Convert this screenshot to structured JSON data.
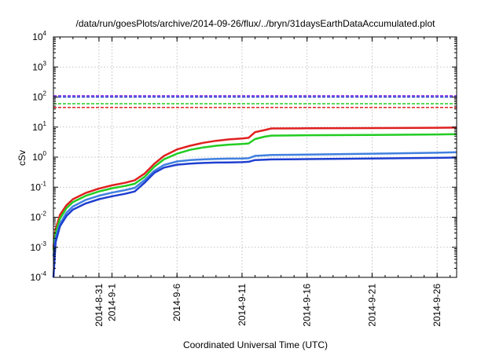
{
  "chart_data": {
    "type": "line",
    "title": "/data/run/goesPlots/archive/2014-09-26/flux/../bryn/31daysEarthDataAccumulated.plot",
    "xlabel": "Coordinated Universal Time (UTC)",
    "ylabel": "cSv",
    "yscale": "log",
    "ylim": [
      0.0001,
      10000
    ],
    "xlim": [
      "2014-08-27 12:00",
      "2014-09-27 12:00"
    ],
    "grid": true,
    "y_ticks": [
      {
        "value": 0.0001,
        "base": "10",
        "exp": "-4"
      },
      {
        "value": 0.001,
        "base": "10",
        "exp": "-3"
      },
      {
        "value": 0.01,
        "base": "10",
        "exp": "-2"
      },
      {
        "value": 0.1,
        "base": "10",
        "exp": "-1"
      },
      {
        "value": 1,
        "base": "10",
        "exp": "0"
      },
      {
        "value": 10,
        "base": "10",
        "exp": "1"
      },
      {
        "value": 100,
        "base": "10",
        "exp": "2"
      },
      {
        "value": 1000,
        "base": "10",
        "exp": "3"
      },
      {
        "value": 10000,
        "base": "10",
        "exp": "4"
      }
    ],
    "x_ticks": [
      {
        "label": "2014-8-31",
        "date": "2014-08-31"
      },
      {
        "label": "2014-9-1",
        "date": "2014-09-01"
      },
      {
        "label": "2014-9-6",
        "date": "2014-09-06"
      },
      {
        "label": "2014-9-11",
        "date": "2014-09-11"
      },
      {
        "label": "2014-9-16",
        "date": "2014-09-16"
      },
      {
        "label": "2014-9-21",
        "date": "2014-09-21"
      },
      {
        "label": "2014-9-26",
        "date": "2014-09-26"
      }
    ],
    "reference_lines": [
      {
        "value": 110,
        "color": "#8a2be2"
      },
      {
        "value": 100,
        "color": "#1f3fd0"
      },
      {
        "value": 60,
        "color": "#22cc22"
      },
      {
        "value": 45,
        "color": "#e02020"
      }
    ],
    "series": [
      {
        "color": "#e02020",
        "points": [
          [
            "2014-08-27 12:00",
            0.001
          ],
          [
            "2014-08-27 16:00",
            0.004
          ],
          [
            "2014-08-28 00:00",
            0.012
          ],
          [
            "2014-08-28 12:00",
            0.025
          ],
          [
            "2014-08-29 00:00",
            0.04
          ],
          [
            "2014-08-30 00:00",
            0.065
          ],
          [
            "2014-08-31 00:00",
            0.09
          ],
          [
            "2014-09-01 00:00",
            0.115
          ],
          [
            "2014-09-02 00:00",
            0.14
          ],
          [
            "2014-09-02 18:00",
            0.17
          ],
          [
            "2014-09-03 12:00",
            0.28
          ],
          [
            "2014-09-04 06:00",
            0.6
          ],
          [
            "2014-09-05 00:00",
            1.1
          ],
          [
            "2014-09-06 00:00",
            1.8
          ],
          [
            "2014-09-07 00:00",
            2.4
          ],
          [
            "2014-09-08 00:00",
            3.0
          ],
          [
            "2014-09-09 00:00",
            3.5
          ],
          [
            "2014-09-10 00:00",
            3.9
          ],
          [
            "2014-09-11 00:00",
            4.2
          ],
          [
            "2014-09-11 12:00",
            4.4
          ],
          [
            "2014-09-12 00:00",
            6.8
          ],
          [
            "2014-09-12 18:00",
            8.0
          ],
          [
            "2014-09-13 06:00",
            9.0
          ],
          [
            "2014-09-16 00:00",
            9.1
          ],
          [
            "2014-09-21 00:00",
            9.3
          ],
          [
            "2014-09-26 00:00",
            9.5
          ],
          [
            "2014-09-27 12:00",
            9.6
          ]
        ]
      },
      {
        "color": "#22cc22",
        "points": [
          [
            "2014-08-27 12:00",
            0.0008
          ],
          [
            "2014-08-27 16:00",
            0.003
          ],
          [
            "2014-08-28 00:00",
            0.009
          ],
          [
            "2014-08-28 12:00",
            0.02
          ],
          [
            "2014-08-29 00:00",
            0.032
          ],
          [
            "2014-08-30 00:00",
            0.052
          ],
          [
            "2014-08-31 00:00",
            0.072
          ],
          [
            "2014-09-01 00:00",
            0.092
          ],
          [
            "2014-09-02 00:00",
            0.11
          ],
          [
            "2014-09-02 18:00",
            0.13
          ],
          [
            "2014-09-03 12:00",
            0.22
          ],
          [
            "2014-09-04 06:00",
            0.48
          ],
          [
            "2014-09-05 00:00",
            0.85
          ],
          [
            "2014-09-06 00:00",
            1.3
          ],
          [
            "2014-09-07 00:00",
            1.75
          ],
          [
            "2014-09-08 00:00",
            2.1
          ],
          [
            "2014-09-09 00:00",
            2.4
          ],
          [
            "2014-09-10 00:00",
            2.6
          ],
          [
            "2014-09-11 00:00",
            2.75
          ],
          [
            "2014-09-11 12:00",
            2.85
          ],
          [
            "2014-09-12 00:00",
            4.0
          ],
          [
            "2014-09-12 18:00",
            4.8
          ],
          [
            "2014-09-13 06:00",
            5.2
          ],
          [
            "2014-09-16 00:00",
            5.35
          ],
          [
            "2014-09-21 00:00",
            5.5
          ],
          [
            "2014-09-26 00:00",
            5.7
          ],
          [
            "2014-09-27 12:00",
            5.8
          ]
        ]
      },
      {
        "color": "#4080e0",
        "points": [
          [
            "2014-08-27 12:00",
            0.0005
          ],
          [
            "2014-08-27 16:00",
            0.002
          ],
          [
            "2014-08-28 00:00",
            0.006
          ],
          [
            "2014-08-28 12:00",
            0.014
          ],
          [
            "2014-08-29 00:00",
            0.023
          ],
          [
            "2014-08-30 00:00",
            0.038
          ],
          [
            "2014-08-31 00:00",
            0.052
          ],
          [
            "2014-09-01 00:00",
            0.066
          ],
          [
            "2014-09-02 00:00",
            0.08
          ],
          [
            "2014-09-02 18:00",
            0.095
          ],
          [
            "2014-09-03 12:00",
            0.17
          ],
          [
            "2014-09-04 06:00",
            0.35
          ],
          [
            "2014-09-05 00:00",
            0.55
          ],
          [
            "2014-09-06 00:00",
            0.72
          ],
          [
            "2014-09-07 00:00",
            0.8
          ],
          [
            "2014-09-08 00:00",
            0.84
          ],
          [
            "2014-09-09 00:00",
            0.87
          ],
          [
            "2014-09-10 00:00",
            0.89
          ],
          [
            "2014-09-11 00:00",
            0.9
          ],
          [
            "2014-09-11 12:00",
            0.92
          ],
          [
            "2014-09-12 00:00",
            1.1
          ],
          [
            "2014-09-12 18:00",
            1.15
          ],
          [
            "2014-09-13 06:00",
            1.18
          ],
          [
            "2014-09-16 00:00",
            1.22
          ],
          [
            "2014-09-21 00:00",
            1.3
          ],
          [
            "2014-09-26 00:00",
            1.4
          ],
          [
            "2014-09-27 12:00",
            1.45
          ]
        ]
      },
      {
        "color": "#1f3fd0",
        "points": [
          [
            "2014-08-27 12:00",
            0.0001
          ],
          [
            "2014-08-27 16:00",
            0.0015
          ],
          [
            "2014-08-28 00:00",
            0.005
          ],
          [
            "2014-08-28 12:00",
            0.011
          ],
          [
            "2014-08-29 00:00",
            0.018
          ],
          [
            "2014-08-30 00:00",
            0.029
          ],
          [
            "2014-08-31 00:00",
            0.04
          ],
          [
            "2014-09-01 00:00",
            0.05
          ],
          [
            "2014-09-02 00:00",
            0.06
          ],
          [
            "2014-09-02 18:00",
            0.072
          ],
          [
            "2014-09-03 12:00",
            0.14
          ],
          [
            "2014-09-04 06:00",
            0.3
          ],
          [
            "2014-09-05 00:00",
            0.45
          ],
          [
            "2014-09-06 00:00",
            0.56
          ],
          [
            "2014-09-07 00:00",
            0.61
          ],
          [
            "2014-09-08 00:00",
            0.64
          ],
          [
            "2014-09-09 00:00",
            0.66
          ],
          [
            "2014-09-10 00:00",
            0.67
          ],
          [
            "2014-09-11 00:00",
            0.68
          ],
          [
            "2014-09-11 12:00",
            0.7
          ],
          [
            "2014-09-12 00:00",
            0.8
          ],
          [
            "2014-09-12 18:00",
            0.82
          ],
          [
            "2014-09-13 06:00",
            0.84
          ],
          [
            "2014-09-16 00:00",
            0.86
          ],
          [
            "2014-09-21 00:00",
            0.9
          ],
          [
            "2014-09-26 00:00",
            0.95
          ],
          [
            "2014-09-27 12:00",
            0.97
          ]
        ]
      }
    ]
  }
}
